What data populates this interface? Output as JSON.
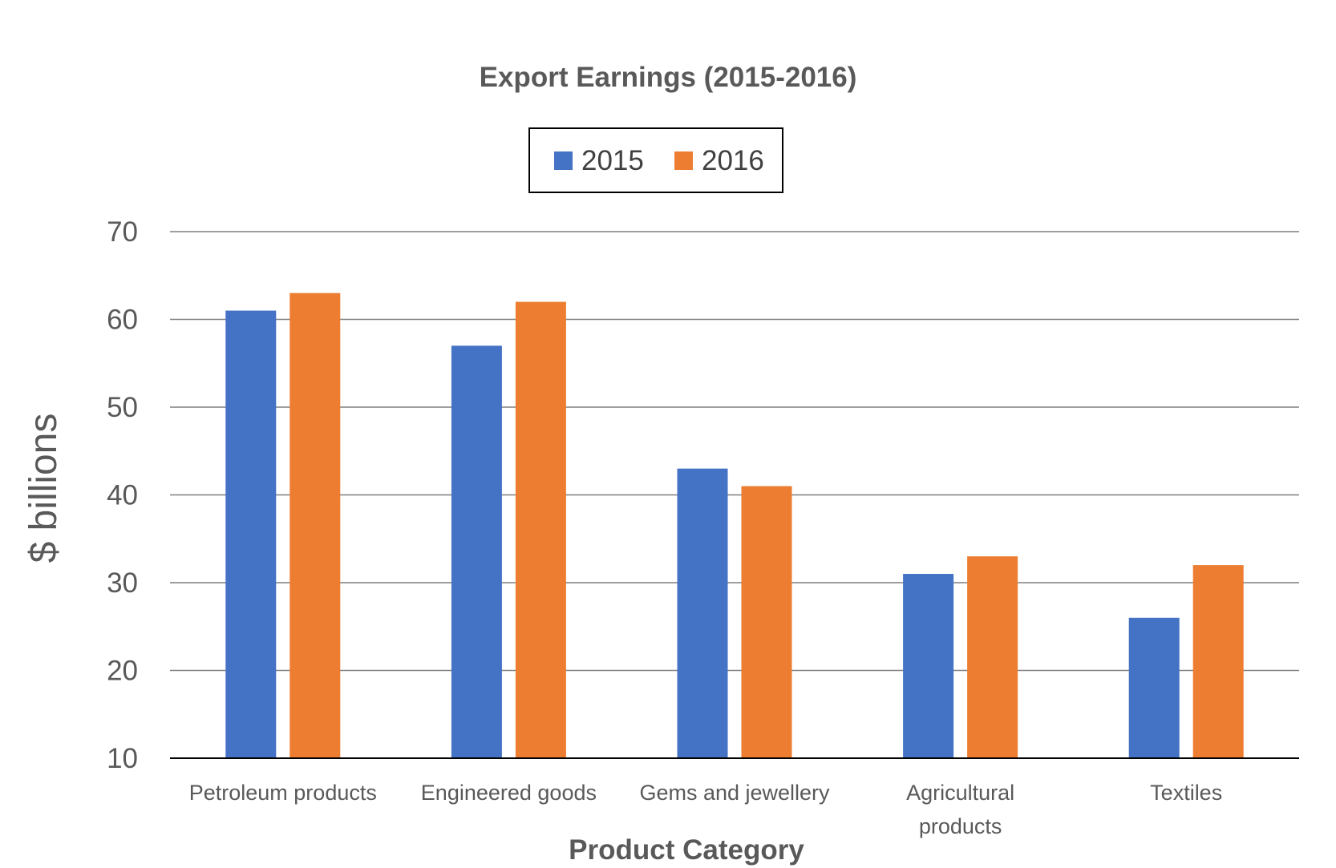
{
  "chart_data": {
    "type": "bar",
    "title": "Export Earnings (2015-2016)",
    "xlabel": "Product Category",
    "ylabel": "$ billions",
    "categories": [
      [
        "Petroleum products"
      ],
      [
        "Engineered goods"
      ],
      [
        "Gems and jewellery"
      ],
      [
        "Agricultural",
        "products"
      ],
      [
        "Textiles"
      ]
    ],
    "series": [
      {
        "name": "2015",
        "color": "#4472C4",
        "values": [
          61,
          57,
          43,
          31,
          26
        ]
      },
      {
        "name": "2016",
        "color": "#ED7D31",
        "values": [
          63,
          62,
          41,
          33,
          32
        ]
      }
    ],
    "ylim": [
      10,
      70
    ],
    "yticks": [
      10,
      20,
      30,
      40,
      50,
      60,
      70
    ],
    "grid": true,
    "legend_position": "top-center"
  }
}
